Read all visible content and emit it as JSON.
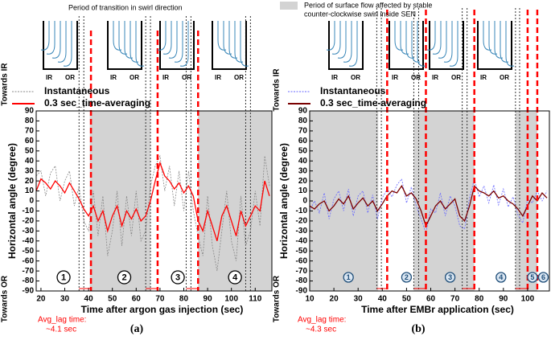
{
  "charts": [
    {
      "type": "line",
      "panel_label": "(a)",
      "top_note": "Period of transition in swirl direction",
      "schematic_labels": [
        "IR",
        "OR"
      ],
      "x_label": "Time after argon gas injection (sec)",
      "y_label": "Horizontal angle (degree)",
      "y_direction_labels": [
        "Towards IR",
        "Towards OR"
      ],
      "lag_annotation": [
        "Avg_lag time:",
        "~4.1 sec"
      ],
      "phase_labels": [
        "1",
        "2",
        "3",
        "4"
      ],
      "phase_color": "#000000",
      "shade_color": "#d3d3d3",
      "shaded_regions": [
        [
          40.5,
          66
        ],
        [
          86,
          117
        ]
      ],
      "red_dashed_lines": [
        41,
        69,
        86
      ],
      "transition_lines": [
        36,
        38,
        64,
        66,
        81,
        83,
        106,
        108
      ],
      "xlim": [
        18,
        117
      ],
      "xticks": [
        20,
        30,
        40,
        50,
        60,
        70,
        80,
        90,
        100,
        110
      ],
      "ylim": [
        -90,
        90
      ],
      "yticks": [
        -90,
        -80,
        -70,
        -60,
        -50,
        -40,
        -30,
        -20,
        -10,
        0,
        10,
        20,
        30,
        40,
        50,
        60,
        70,
        80,
        90
      ],
      "x": [
        18,
        20,
        22,
        24,
        26,
        28,
        30,
        32,
        34,
        36,
        38,
        40,
        42,
        44,
        46,
        48,
        50,
        52,
        54,
        56,
        58,
        60,
        62,
        64,
        66,
        68,
        70,
        72,
        74,
        76,
        78,
        80,
        82,
        84,
        86,
        88,
        90,
        92,
        94,
        96,
        98,
        100,
        102,
        104,
        106,
        108,
        110,
        112,
        114,
        116
      ],
      "series": [
        {
          "name": "Instantaneous",
          "color": "#888888",
          "dashed": true,
          "values": [
            25,
            30,
            5,
            28,
            35,
            0,
            20,
            30,
            -5,
            15,
            -20,
            -30,
            10,
            -35,
            5,
            -55,
            -30,
            10,
            -45,
            5,
            -35,
            10,
            -40,
            -30,
            15,
            35,
            45,
            10,
            35,
            -5,
            30,
            -10,
            30,
            -10,
            -35,
            -55,
            5,
            -45,
            -70,
            -30,
            10,
            -40,
            -60,
            5,
            -45,
            -30,
            10,
            -25,
            45,
            15
          ]
        },
        {
          "name": "0.3 sec_time-averaging",
          "color": "#ff0000",
          "dashed": false,
          "values": [
            10,
            22,
            18,
            12,
            20,
            15,
            8,
            18,
            10,
            2,
            -8,
            -15,
            -5,
            -20,
            -10,
            -30,
            -15,
            -5,
            -25,
            -10,
            -18,
            -8,
            -20,
            -15,
            0,
            20,
            38,
            25,
            20,
            12,
            18,
            8,
            15,
            5,
            -20,
            -30,
            -10,
            -25,
            -40,
            -15,
            -5,
            -20,
            -35,
            -10,
            -25,
            -15,
            -5,
            -10,
            20,
            5
          ]
        }
      ]
    },
    {
      "type": "line",
      "panel_label": "(b)",
      "top_note": [
        "Period of surface flow affected by stable",
        "counter-clockwise swirl inside SEN"
      ],
      "schematic_labels": [
        "IR",
        "OR"
      ],
      "x_label": "Time after EMBr application (sec)",
      "y_label": "Horizontal angle (degree)",
      "y_direction_labels": [
        "Towards IR",
        "Towards OR"
      ],
      "lag_annotation": [
        "Avg_lag time:",
        "~4.3 sec"
      ],
      "phase_labels": [
        "1",
        "2",
        "3",
        "4",
        "5",
        "6"
      ],
      "phase_color": "#1f4e79",
      "shade_color": "#d3d3d3",
      "shaded_regions": [
        [
          10,
          38.3
        ],
        [
          53,
          78
        ],
        [
          95,
          104
        ]
      ],
      "red_dashed_lines": [
        42,
        58,
        78,
        100,
        104
      ],
      "transition_lines": [
        37.7,
        39.6,
        53,
        55,
        73,
        75,
        95,
        96.7
      ],
      "xlim": [
        10,
        109
      ],
      "xticks": [
        10,
        20,
        30,
        40,
        50,
        60,
        70,
        80,
        90,
        100
      ],
      "ylim": [
        -90,
        90
      ],
      "yticks": [
        -90,
        -80,
        -70,
        -60,
        -50,
        -40,
        -30,
        -20,
        -10,
        0,
        10,
        20,
        30,
        40,
        50,
        60,
        70,
        80,
        90
      ],
      "x": [
        10,
        12,
        14,
        16,
        18,
        20,
        22,
        24,
        26,
        28,
        30,
        32,
        34,
        36,
        38,
        40,
        42,
        44,
        46,
        48,
        50,
        52,
        54,
        56,
        58,
        60,
        62,
        64,
        66,
        68,
        70,
        72,
        74,
        76,
        78,
        80,
        82,
        84,
        86,
        88,
        90,
        92,
        94,
        96,
        98,
        100,
        102,
        104,
        106,
        108
      ],
      "series": [
        {
          "name": "Instantaneous",
          "color": "#6666ff",
          "dashed": true,
          "values": [
            -10,
            0,
            -12,
            8,
            -18,
            2,
            10,
            -10,
            12,
            -15,
            5,
            10,
            -12,
            6,
            -18,
            3,
            12,
            4,
            16,
            22,
            -2,
            14,
            -5,
            -18,
            -32,
            -8,
            -12,
            8,
            -15,
            5,
            -5,
            -25,
            -28,
            3,
            22,
            4,
            15,
            -2,
            16,
            -4,
            12,
            -6,
            4,
            -14,
            -22,
            2,
            -2,
            10,
            0,
            10
          ]
        },
        {
          "name": "0.3 sec_time-averaging",
          "color": "#7a0000",
          "dashed": false,
          "values": [
            -5,
            -8,
            -3,
            0,
            -10,
            -5,
            2,
            -3,
            5,
            -8,
            -2,
            3,
            -5,
            0,
            -10,
            -3,
            5,
            10,
            8,
            15,
            5,
            8,
            2,
            -10,
            -25,
            -15,
            -5,
            0,
            -8,
            -3,
            2,
            -15,
            -20,
            -5,
            15,
            10,
            8,
            5,
            10,
            3,
            5,
            0,
            -3,
            -8,
            -15,
            -5,
            5,
            0,
            8,
            3
          ]
        }
      ]
    }
  ]
}
